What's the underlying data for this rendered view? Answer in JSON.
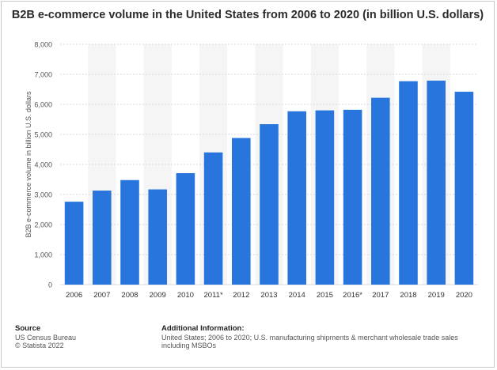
{
  "title": "B2B e-commerce volume in the United States from 2006 to 2020 (in billion U.S. dollars)",
  "source": {
    "heading": "Source",
    "line1": "US Census Bureau",
    "line2": "© Statista 2022"
  },
  "additional_info": {
    "heading": "Additional Information:",
    "text": "United States; 2006 to 2020; U.S. manufacturing shipments & merchant wholesale trade sales including MSBOs"
  },
  "colors": {
    "bar": "#2876dd",
    "band": "#f5f5f5",
    "grid": "#d9d9d9"
  },
  "chart_data": {
    "type": "bar",
    "title": "B2B e-commerce volume in the United States from 2006 to 2020 (in billion U.S. dollars)",
    "xlabel": "",
    "ylabel": "B2B e-commerce volume in billion U.S. dollars",
    "categories": [
      "2006",
      "2007",
      "2008",
      "2009",
      "2010",
      "2011*",
      "2012",
      "2013",
      "2014",
      "2015",
      "2016*",
      "2017",
      "2018",
      "2019",
      "2020"
    ],
    "values": [
      2760,
      3130,
      3480,
      3170,
      3710,
      4400,
      4880,
      5340,
      5770,
      5800,
      5820,
      6220,
      6770,
      6790,
      6420
    ],
    "ylim": [
      0,
      8000
    ],
    "yticks": [
      0,
      1000,
      2000,
      3000,
      4000,
      5000,
      6000,
      7000,
      8000
    ],
    "ytick_labels": [
      "0",
      "1,000",
      "2,000",
      "3,000",
      "4,000",
      "5,000",
      "6,000",
      "7,000",
      "8,000"
    ],
    "grid": true,
    "legend": "none"
  }
}
